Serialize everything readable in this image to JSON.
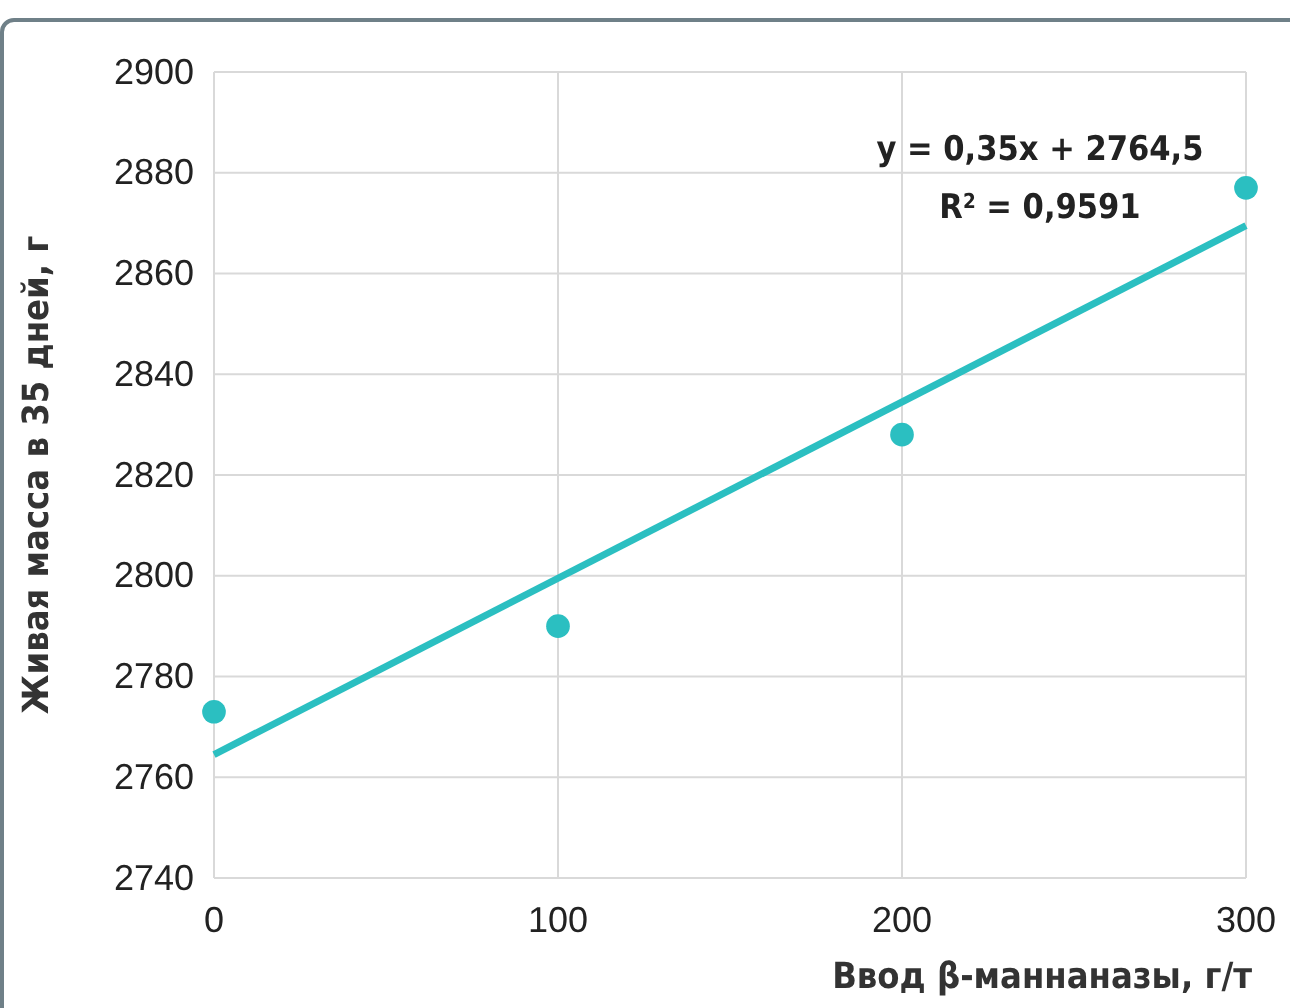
{
  "chart_data": {
    "type": "scatter",
    "xlabel": "Ввод β-маннаназы, г/т",
    "ylabel": "Живая масса в 35 дней, г",
    "x": [
      0,
      100,
      200,
      300
    ],
    "series": [
      {
        "color": "#2bbfc1",
        "marker": "circle",
        "values": [
          2773,
          2790,
          2828,
          2877
        ]
      },
      {
        "type": "line",
        "marker": "none",
        "color": "#2bbfc1",
        "x": [
          0,
          300
        ],
        "values": [
          2764.5,
          2869.5
        ]
      }
    ],
    "annotations": [
      "y = 0,35x + 2764,5",
      "R$^{2}$ = 0,9591"
    ],
    "xlim": [
      0,
      300
    ],
    "xticks": [
      0,
      100,
      200,
      300
    ],
    "ylim": [
      2740,
      2900
    ],
    "yticks": [
      2740,
      2760,
      2780,
      2800,
      2820,
      2840,
      2860,
      2880,
      2900
    ],
    "grid": true
  }
}
